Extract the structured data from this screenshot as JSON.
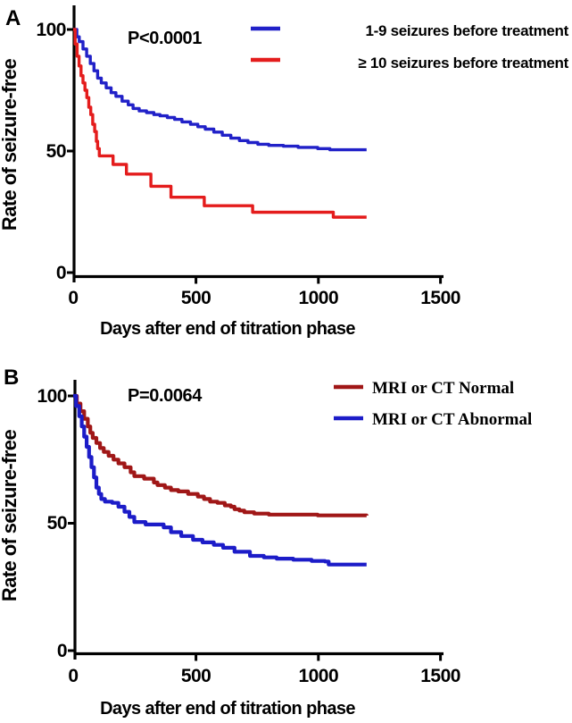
{
  "figure": {
    "panels": [
      {
        "label": "A"
      },
      {
        "label": "B"
      }
    ]
  },
  "colors": {
    "axis": "#000000",
    "background": "#ffffff",
    "panel_a_blue": "#2121C8",
    "panel_a_red": "#E41C1C",
    "panel_b_dark_red": "#A01717",
    "panel_b_blue": "#1C1CC8"
  },
  "chart_data": [
    {
      "type": "line",
      "subtype": "kaplan-meier-step",
      "panel": "A",
      "p_value": "P<0.0001",
      "xlabel": "Days after end of titration phase",
      "ylabel": "Rate of seizure-free",
      "xlim": [
        0,
        1500
      ],
      "ylim": [
        0,
        100
      ],
      "x_ticks": [
        0,
        500,
        1000,
        1500
      ],
      "y_ticks": [
        0,
        50,
        100
      ],
      "grid": false,
      "legend_position": "top-right",
      "series": [
        {
          "name": "1-9 seizures before treatment",
          "color": "#2121C8",
          "points": [
            [
              0,
              100
            ],
            [
              15,
              97
            ],
            [
              25,
              95
            ],
            [
              40,
              92
            ],
            [
              55,
              89
            ],
            [
              70,
              86
            ],
            [
              85,
              83
            ],
            [
              100,
              80
            ],
            [
              115,
              78
            ],
            [
              135,
              76
            ],
            [
              155,
              74
            ],
            [
              175,
              72.5
            ],
            [
              200,
              70.5
            ],
            [
              225,
              69
            ],
            [
              245,
              67.5
            ],
            [
              270,
              66.5
            ],
            [
              300,
              65.8
            ],
            [
              330,
              65
            ],
            [
              355,
              64.5
            ],
            [
              385,
              63.8
            ],
            [
              415,
              63
            ],
            [
              445,
              62
            ],
            [
              480,
              61
            ],
            [
              510,
              60
            ],
            [
              540,
              59
            ],
            [
              575,
              57.8
            ],
            [
              610,
              56.5
            ],
            [
              645,
              55.3
            ],
            [
              680,
              54.3
            ],
            [
              715,
              53.5
            ],
            [
              755,
              52.8
            ],
            [
              800,
              52.3
            ],
            [
              860,
              52
            ],
            [
              920,
              51.5
            ],
            [
              1000,
              51
            ],
            [
              1050,
              50.5
            ],
            [
              1200,
              50.5
            ]
          ]
        },
        {
          "name": "≥ 10 seizures before treatment",
          "color": "#E41C1C",
          "points": [
            [
              0,
              100
            ],
            [
              8,
              94
            ],
            [
              16,
              89
            ],
            [
              24,
              85
            ],
            [
              32,
              81
            ],
            [
              40,
              78
            ],
            [
              48,
              75
            ],
            [
              56,
              72
            ],
            [
              64,
              68
            ],
            [
              72,
              65
            ],
            [
              80,
              61
            ],
            [
              88,
              58
            ],
            [
              95,
              54
            ],
            [
              100,
              51
            ],
            [
              107,
              48
            ],
            [
              158,
              48
            ],
            [
              163,
              44.5
            ],
            [
              213,
              44.5
            ],
            [
              218,
              40.5
            ],
            [
              312,
              40.5
            ],
            [
              318,
              35.5
            ],
            [
              395,
              35.5
            ],
            [
              400,
              31
            ],
            [
              530,
              31
            ],
            [
              536,
              27.5
            ],
            [
              728,
              27.5
            ],
            [
              734,
              24.8
            ],
            [
              1058,
              24.8
            ],
            [
              1064,
              22.8
            ],
            [
              1200,
              22.8
            ]
          ]
        }
      ]
    },
    {
      "type": "line",
      "subtype": "kaplan-meier-step",
      "panel": "B",
      "p_value": "P=0.0064",
      "xlabel": "Days after end of titration phase",
      "ylabel": "Rate of seizure-free",
      "xlim": [
        0,
        1500
      ],
      "ylim": [
        0,
        100
      ],
      "x_ticks": [
        0,
        500,
        1000,
        1500
      ],
      "y_ticks": [
        0,
        50,
        100
      ],
      "grid": false,
      "legend_position": "top-right",
      "series": [
        {
          "name": "MRI or CT Normal",
          "color": "#A01717",
          "points": [
            [
              0,
              100
            ],
            [
              15,
              97
            ],
            [
              30,
              94
            ],
            [
              45,
              91
            ],
            [
              60,
              88
            ],
            [
              70,
              85.5
            ],
            [
              80,
              83.5
            ],
            [
              95,
              81.5
            ],
            [
              110,
              79.5
            ],
            [
              125,
              78
            ],
            [
              145,
              76.5
            ],
            [
              165,
              75
            ],
            [
              185,
              73.5
            ],
            [
              210,
              72
            ],
            [
              235,
              70
            ],
            [
              250,
              68.5
            ],
            [
              290,
              67.5
            ],
            [
              330,
              66
            ],
            [
              345,
              65
            ],
            [
              375,
              64
            ],
            [
              400,
              63
            ],
            [
              430,
              62.5
            ],
            [
              470,
              61.5
            ],
            [
              510,
              60.5
            ],
            [
              535,
              59.5
            ],
            [
              560,
              58.5
            ],
            [
              590,
              58
            ],
            [
              620,
              57
            ],
            [
              645,
              56.5
            ],
            [
              660,
              55.5
            ],
            [
              680,
              55
            ],
            [
              700,
              54.3
            ],
            [
              740,
              53.8
            ],
            [
              800,
              53.4
            ],
            [
              1000,
              53.1
            ],
            [
              1200,
              53
            ]
          ]
        },
        {
          "name": "MRI or CT Abnormal",
          "color": "#1C1CC8",
          "points": [
            [
              0,
              100
            ],
            [
              12,
              96
            ],
            [
              25,
              92
            ],
            [
              35,
              88
            ],
            [
              45,
              84
            ],
            [
              55,
              80
            ],
            [
              65,
              76
            ],
            [
              75,
              72
            ],
            [
              85,
              68
            ],
            [
              95,
              64
            ],
            [
              105,
              61.5
            ],
            [
              115,
              59.5
            ],
            [
              130,
              58.5
            ],
            [
              160,
              58
            ],
            [
              185,
              56.5
            ],
            [
              210,
              54.5
            ],
            [
              230,
              52.5
            ],
            [
              250,
              50.5
            ],
            [
              296,
              49.5
            ],
            [
              370,
              48.4
            ],
            [
              400,
              46.5
            ],
            [
              442,
              45
            ],
            [
              490,
              43.5
            ],
            [
              529,
              42.5
            ],
            [
              575,
              41.5
            ],
            [
              613,
              40.4
            ],
            [
              660,
              38.8
            ],
            [
              723,
              37.2
            ],
            [
              780,
              36.6
            ],
            [
              832,
              36.1
            ],
            [
              900,
              35.7
            ],
            [
              975,
              35.2
            ],
            [
              1030,
              35
            ],
            [
              1045,
              33.8
            ],
            [
              1200,
              33.8
            ]
          ]
        }
      ]
    }
  ]
}
